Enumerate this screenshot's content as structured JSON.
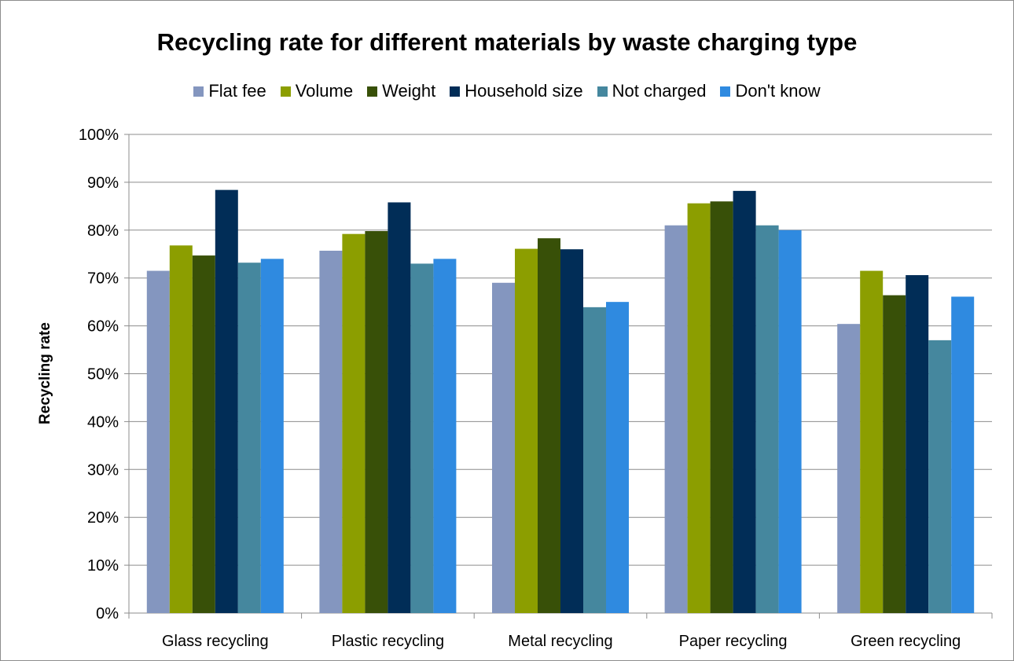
{
  "chart_data": {
    "type": "bar",
    "title": "Recycling rate for different materials by waste charging type",
    "xlabel": "",
    "ylabel": "Recycling rate",
    "ylim": [
      0,
      100
    ],
    "yticks": [
      "0%",
      "10%",
      "20%",
      "30%",
      "40%",
      "50%",
      "60%",
      "70%",
      "80%",
      "90%",
      "100%"
    ],
    "grid": true,
    "legend_position": "top",
    "categories": [
      "Glass recycling",
      "Plastic recycling",
      "Metal recycling",
      "Paper recycling",
      "Green recycling"
    ],
    "series": [
      {
        "name": "Flat fee",
        "color": "#8496bf",
        "values": [
          71.5,
          75.7,
          69.0,
          81.0,
          60.4
        ]
      },
      {
        "name": "Volume",
        "color": "#8c9e00",
        "values": [
          76.8,
          79.2,
          76.1,
          85.6,
          71.5
        ]
      },
      {
        "name": "Weight",
        "color": "#385008",
        "values": [
          74.7,
          79.8,
          78.3,
          86.0,
          66.4
        ]
      },
      {
        "name": "Household size",
        "color": "#012d57",
        "values": [
          88.4,
          85.8,
          76.0,
          88.2,
          70.6
        ]
      },
      {
        "name": "Not charged",
        "color": "#45879e",
        "values": [
          73.2,
          73.0,
          63.9,
          81.0,
          57.0
        ]
      },
      {
        "name": "Don't know",
        "color": "#2f8ae0",
        "values": [
          74.0,
          74.0,
          65.0,
          80.0,
          66.1
        ]
      }
    ]
  }
}
